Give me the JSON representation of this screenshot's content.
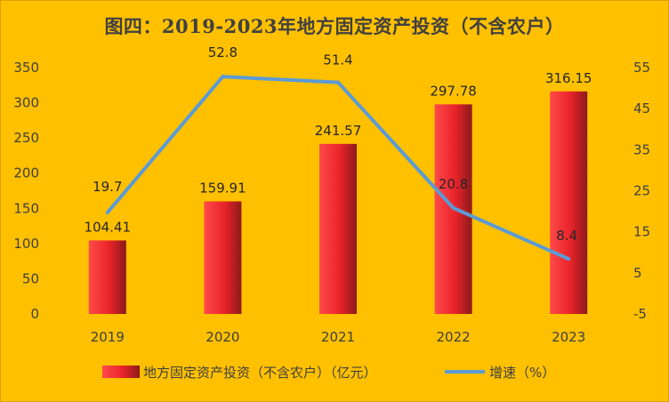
{
  "chart_data": {
    "type": "bar",
    "title": "图四：2019-2023年地方固定资产投资（不含农户）",
    "categories": [
      "2019",
      "2020",
      "2021",
      "2022",
      "2023"
    ],
    "series": [
      {
        "name": "地方固定资产投资（不含农户）（亿元）",
        "type": "bar",
        "axis": "left",
        "values": [
          104.41,
          159.91,
          241.57,
          297.78,
          316.15
        ],
        "color": "#e8232a"
      },
      {
        "name": "增速（%）",
        "type": "line",
        "axis": "right",
        "values": [
          19.7,
          52.8,
          51.4,
          20.8,
          8.4
        ],
        "color": "#5b9bd5"
      }
    ],
    "y_left": {
      "min": 0,
      "max": 350,
      "ticks": [
        "0",
        "50",
        "100",
        "150",
        "200",
        "250",
        "300",
        "350"
      ]
    },
    "y_right": {
      "min": -5,
      "max": 55,
      "ticks": [
        "-5",
        "5",
        "15",
        "25",
        "35",
        "45",
        "55"
      ]
    },
    "grid": false,
    "legend_position": "bottom",
    "background": "#ffc000"
  }
}
